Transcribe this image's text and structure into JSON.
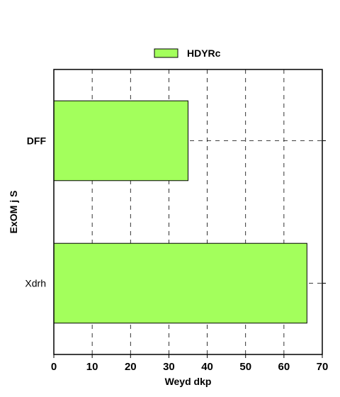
{
  "chart_data": {
    "type": "bar",
    "orientation": "horizontal",
    "categories": [
      "DFF",
      "Xdrh"
    ],
    "category_bold": [
      true,
      false
    ],
    "series": [
      {
        "name": "HDYRc",
        "values": [
          35,
          66
        ],
        "color": "#a3ff5c"
      }
    ],
    "xlabel": "Weyd dkp",
    "ylabel": "ExOM j S",
    "xlim": [
      0,
      70
    ],
    "xticks": [
      0,
      10,
      20,
      30,
      40,
      50,
      60,
      70
    ],
    "xtick_labels": [
      "0",
      "10",
      "20",
      "30",
      "40",
      "50",
      "60",
      "70"
    ],
    "grid": true,
    "grid_style": "dashed",
    "legend_position": "top-center"
  }
}
